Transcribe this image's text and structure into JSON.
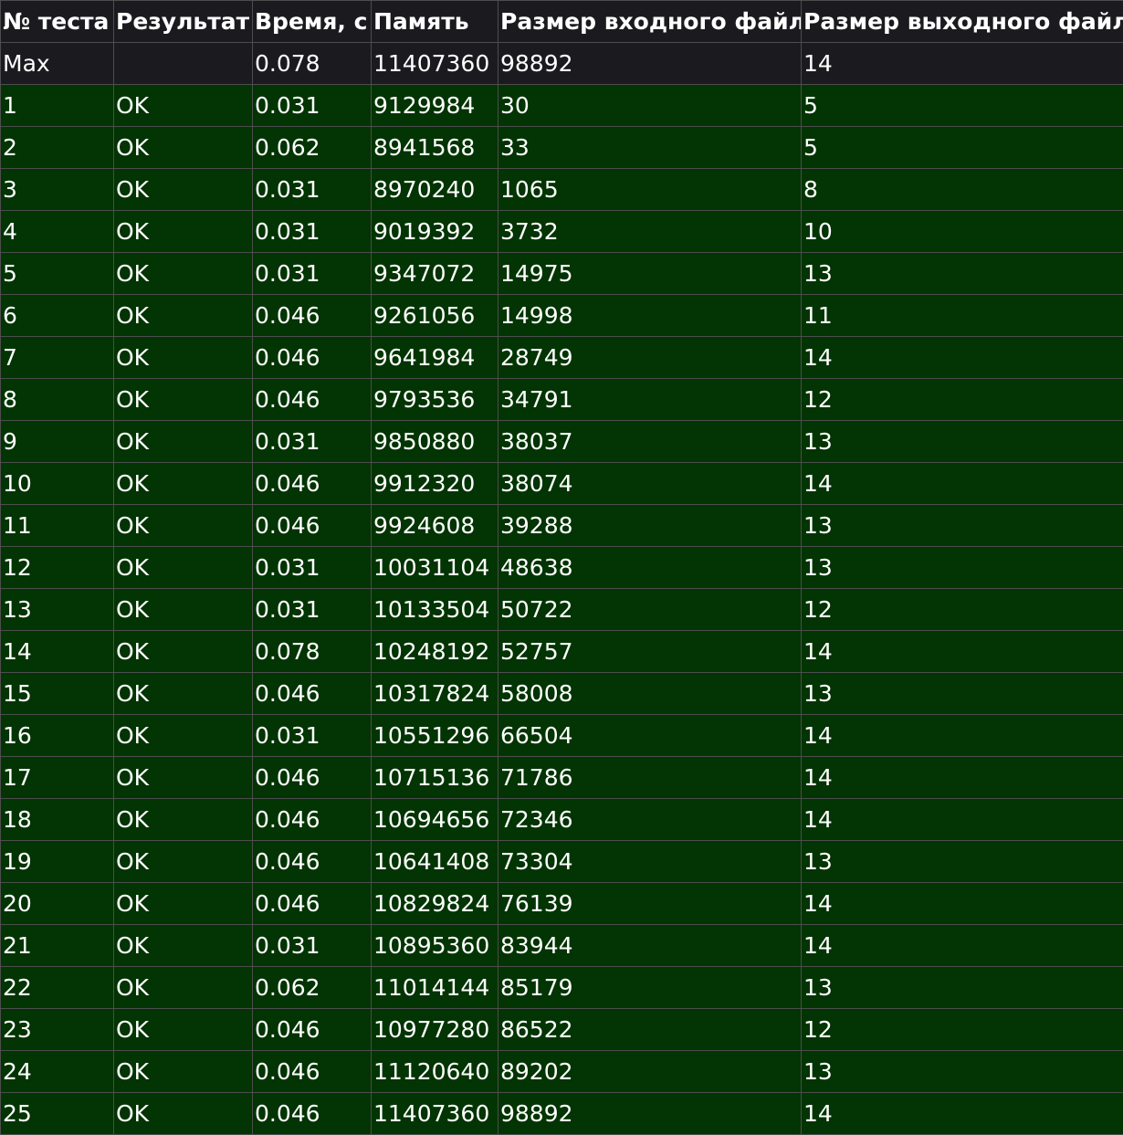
{
  "colors": {
    "header_bg": "#1b1b1f",
    "ok_row_bg": "#033403",
    "grid": "#4d4d4d",
    "text": "#ffffff"
  },
  "headers": [
    "№ теста",
    "Результат",
    "Время, с",
    "Память",
    "Размер входного файла",
    "Размер выходного файла"
  ],
  "max_row": [
    "Max",
    "",
    "0.078",
    "11407360",
    "98892",
    "14"
  ],
  "rows": [
    [
      "1",
      "OK",
      "0.031",
      "9129984",
      "30",
      "5"
    ],
    [
      "2",
      "OK",
      "0.062",
      "8941568",
      "33",
      "5"
    ],
    [
      "3",
      "OK",
      "0.031",
      "8970240",
      "1065",
      "8"
    ],
    [
      "4",
      "OK",
      "0.031",
      "9019392",
      "3732",
      "10"
    ],
    [
      "5",
      "OK",
      "0.031",
      "9347072",
      "14975",
      "13"
    ],
    [
      "6",
      "OK",
      "0.046",
      "9261056",
      "14998",
      "11"
    ],
    [
      "7",
      "OK",
      "0.046",
      "9641984",
      "28749",
      "14"
    ],
    [
      "8",
      "OK",
      "0.046",
      "9793536",
      "34791",
      "12"
    ],
    [
      "9",
      "OK",
      "0.031",
      "9850880",
      "38037",
      "13"
    ],
    [
      "10",
      "OK",
      "0.046",
      "9912320",
      "38074",
      "14"
    ],
    [
      "11",
      "OK",
      "0.046",
      "9924608",
      "39288",
      "13"
    ],
    [
      "12",
      "OK",
      "0.031",
      "10031104",
      "48638",
      "13"
    ],
    [
      "13",
      "OK",
      "0.031",
      "10133504",
      "50722",
      "12"
    ],
    [
      "14",
      "OK",
      "0.078",
      "10248192",
      "52757",
      "14"
    ],
    [
      "15",
      "OK",
      "0.046",
      "10317824",
      "58008",
      "13"
    ],
    [
      "16",
      "OK",
      "0.031",
      "10551296",
      "66504",
      "14"
    ],
    [
      "17",
      "OK",
      "0.046",
      "10715136",
      "71786",
      "14"
    ],
    [
      "18",
      "OK",
      "0.046",
      "10694656",
      "72346",
      "14"
    ],
    [
      "19",
      "OK",
      "0.046",
      "10641408",
      "73304",
      "13"
    ],
    [
      "20",
      "OK",
      "0.046",
      "10829824",
      "76139",
      "14"
    ],
    [
      "21",
      "OK",
      "0.031",
      "10895360",
      "83944",
      "14"
    ],
    [
      "22",
      "OK",
      "0.062",
      "11014144",
      "85179",
      "13"
    ],
    [
      "23",
      "OK",
      "0.046",
      "10977280",
      "86522",
      "12"
    ],
    [
      "24",
      "OK",
      "0.046",
      "11120640",
      "89202",
      "13"
    ],
    [
      "25",
      "OK",
      "0.046",
      "11407360",
      "98892",
      "14"
    ]
  ]
}
